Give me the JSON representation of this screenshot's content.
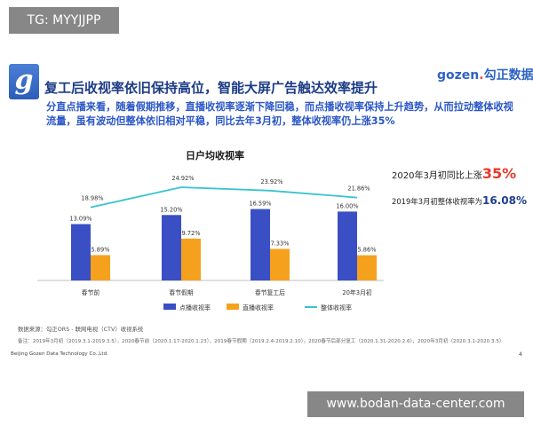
{
  "watermark_top_left": "TG: MYYJJPP",
  "watermark_bottom_right": "www.bodan-data-center.com",
  "header": {
    "title": "复工后收视率依旧保持高位，智能大屏广告触达效率提升",
    "brand": "gozen",
    "brand_dot": ".",
    "brand_cn": "勾正数据",
    "logo_letter": "g"
  },
  "subtitle": "分直点播来看，随着假期推移，直播收视率逐渐下降回稳，而点播收视率保持上升趋势，从而拉动整体收视流量，虽有波动但整体依旧相对平稳，同比去年3月初，整体收视率仍上涨35%",
  "callouts": {
    "yoy_text": "2020年3月初同比上涨",
    "yoy_value": "35%",
    "share_text": "2019年3月初整体收视率为",
    "share_value": "16.08%"
  },
  "source": "数据来源：勾正ORS - 联网电视（CTV）收视系统",
  "note": "备注：2019年3月初（2019.3.1-2019.3.5），2020春节前（2020.1.17-2020.1.23），2019春节假期（2019.2.4-2019.2.10），2020春节后部分复工（2020.1.31-2020.2.6），2020年3月初（2020.3.1-2020.3.5）",
  "footer": "Beijing Gozen Data Technology Co.,Ltd.",
  "page_number": "4",
  "colors": {
    "blue": "#3a4fc4",
    "orange": "#f6a11e",
    "line": "#38c3cf",
    "title": "#1c3c86"
  },
  "chart_data": {
    "type": "bar",
    "title": "日户均收视率",
    "categories": [
      "春节前",
      "春节假期",
      "春节复工后",
      "20年3月初"
    ],
    "series": [
      {
        "name": "点播收视率",
        "kind": "bar",
        "values": [
          13.09,
          15.2,
          16.59,
          16.0
        ],
        "labels": [
          "13.09%",
          "15.20%",
          "16.59%",
          "16.00%"
        ]
      },
      {
        "name": "直播收视率",
        "kind": "bar",
        "values": [
          5.89,
          9.72,
          7.33,
          5.86
        ],
        "labels": [
          "5.89%",
          "9.72%",
          "7.33%",
          "5.86%"
        ]
      },
      {
        "name": "整体收视率",
        "kind": "line",
        "values": [
          18.98,
          24.92,
          23.92,
          21.86
        ],
        "labels": [
          "18.98%",
          "24.92%",
          "23.92%",
          "21.86%"
        ]
      }
    ],
    "ylim": [
      0,
      28
    ],
    "grid": false,
    "legend": "bottom"
  }
}
